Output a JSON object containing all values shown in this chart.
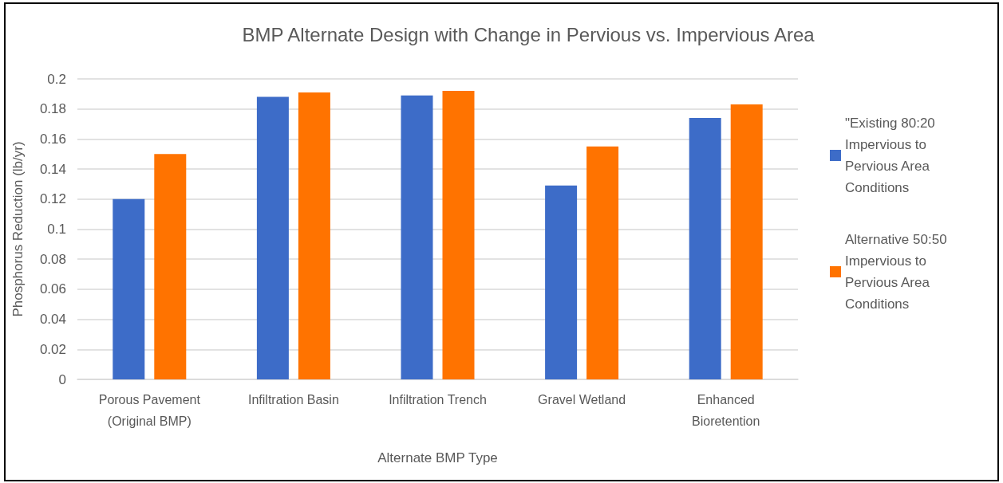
{
  "chart_data": {
    "type": "bar",
    "title": "BMP Alternate Design with Change in Pervious vs. Impervious Area",
    "xlabel": "Alternate BMP Type",
    "ylabel": "Phosphorus Reduction (lb/yr)",
    "categories": [
      "Porous Pavement (Original BMP)",
      "Infiltration Basin",
      "Infiltration Trench",
      "Gravel Wetland",
      "Enhanced Bioretention"
    ],
    "series": [
      {
        "name": "\"Existing 80:20 Impervious to Pervious Area Conditions",
        "color": "#3d6cc8",
        "values": [
          0.12,
          0.188,
          0.189,
          0.129,
          0.174
        ]
      },
      {
        "name": "Alternative 50:50 Impervious to Pervious Area Conditions",
        "color": "#ff7300",
        "values": [
          0.15,
          0.191,
          0.192,
          0.155,
          0.183
        ]
      }
    ],
    "ylim": [
      0,
      0.2
    ],
    "yticks": [
      0,
      0.02,
      0.04,
      0.06,
      0.08,
      0.1,
      0.12,
      0.14,
      0.16,
      0.18,
      0.2
    ],
    "grid": "y",
    "legend": "right"
  }
}
